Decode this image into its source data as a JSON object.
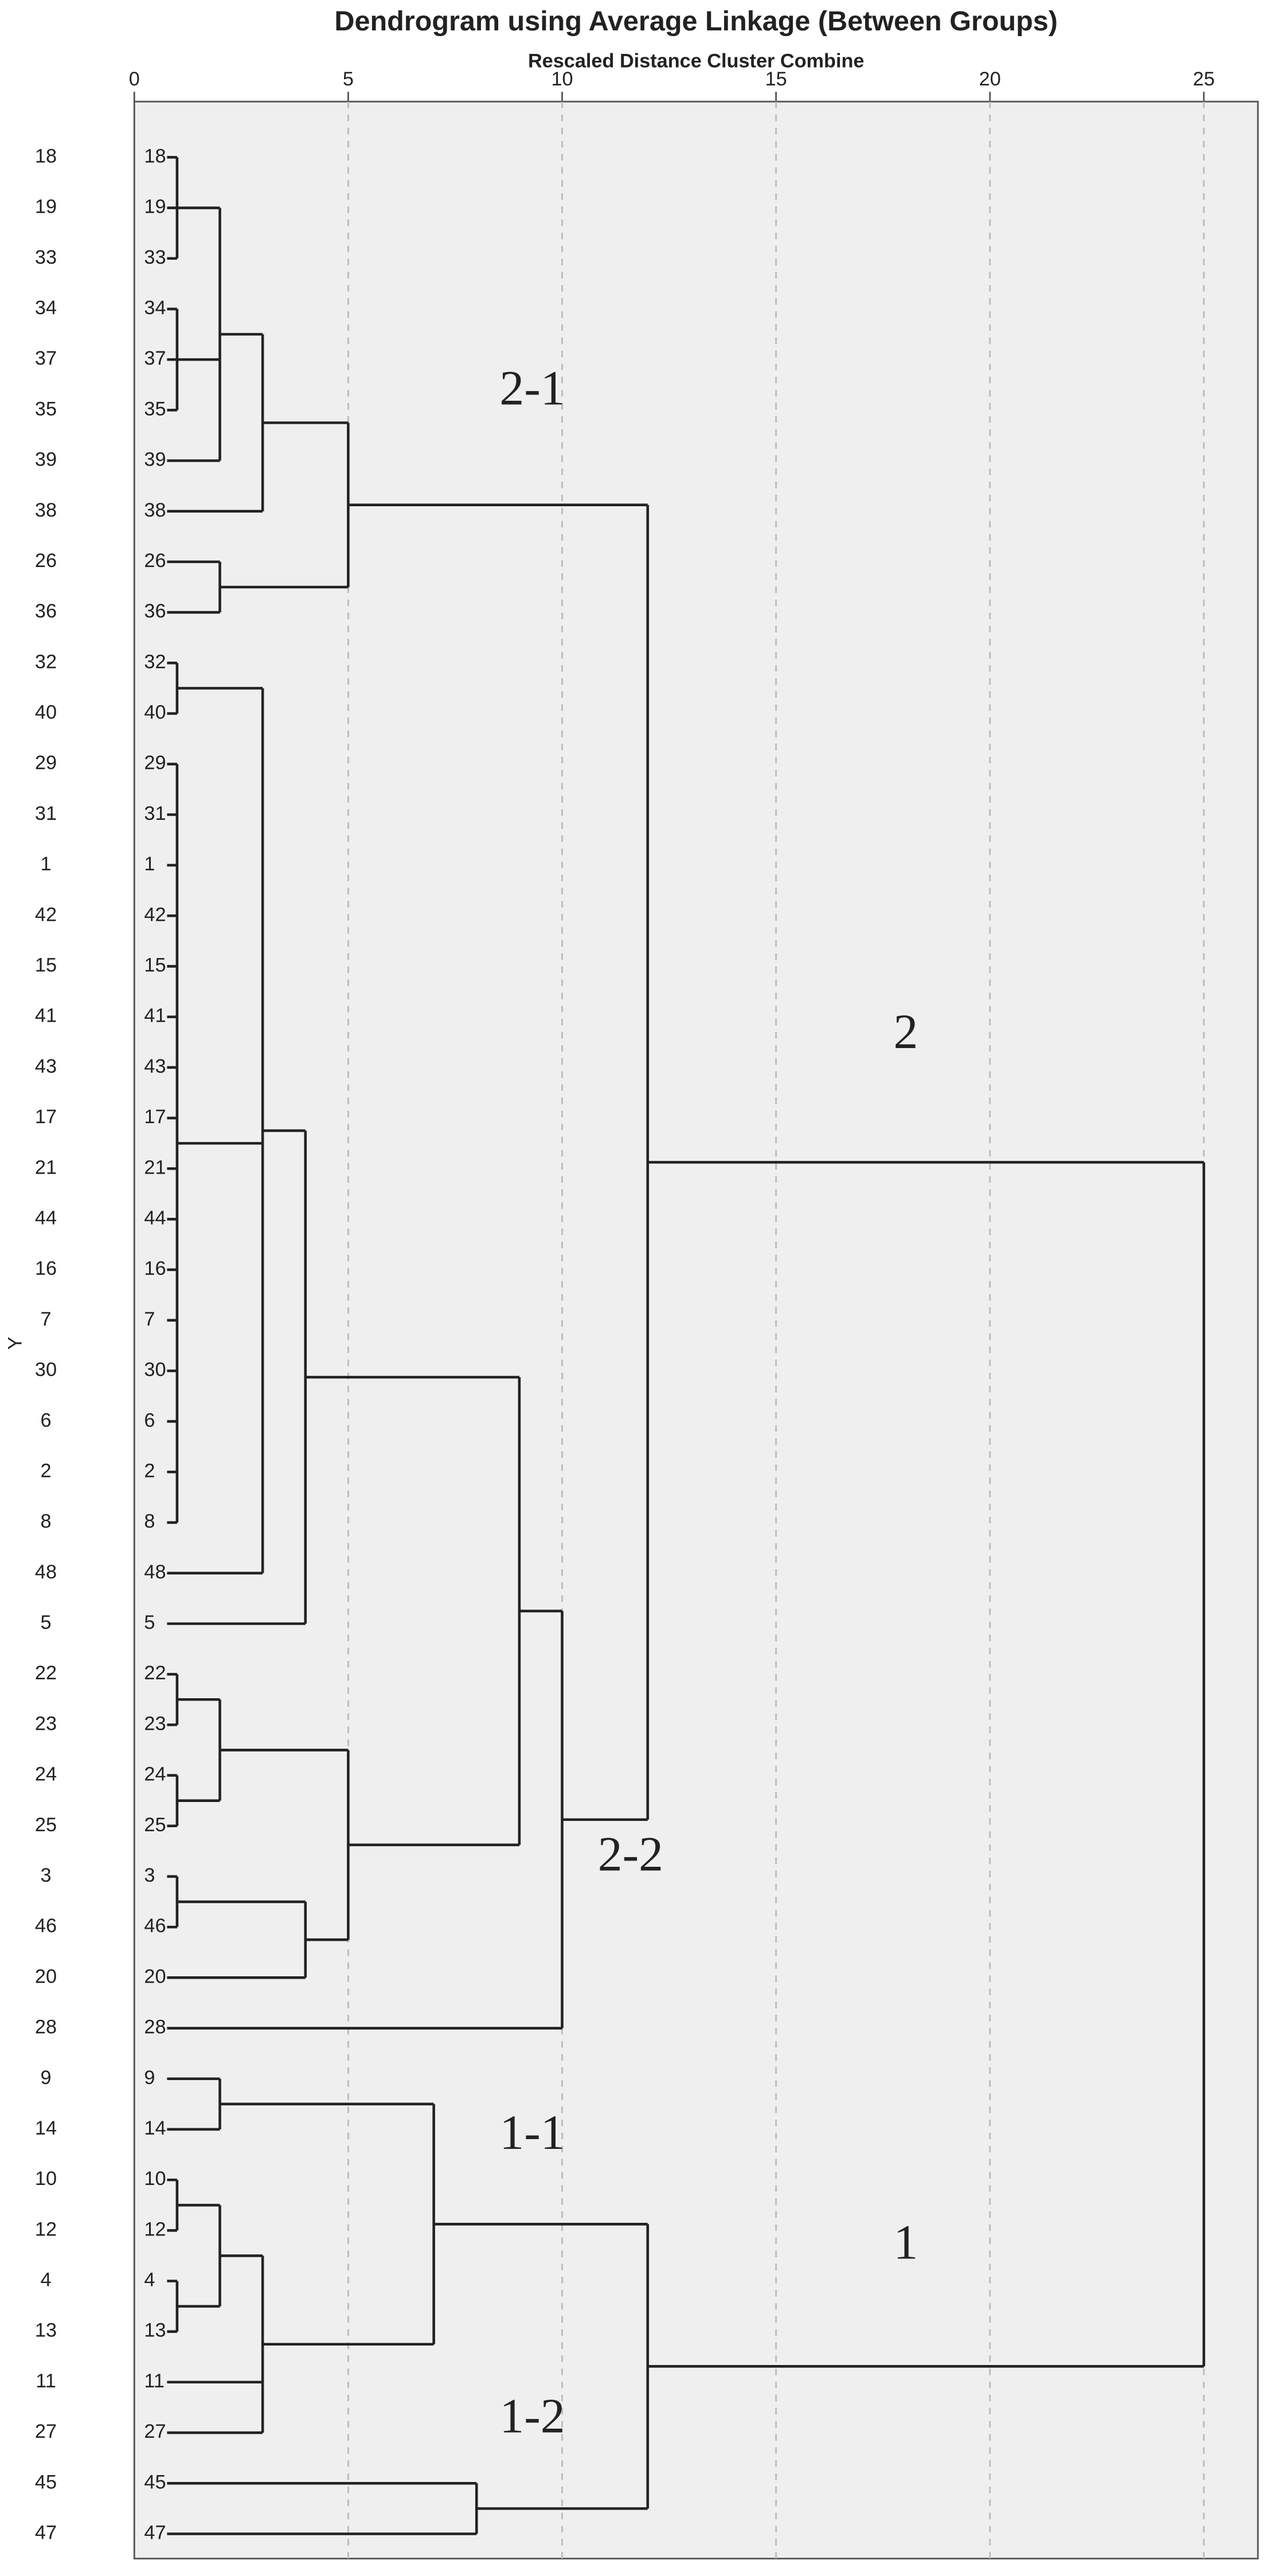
{
  "chart_data": {
    "type": "dendrogram",
    "title": "Dendrogram using Average Linkage (Between Groups)",
    "subtitle": "Rescaled Distance Cluster Combine",
    "y_label": "Y",
    "xlim": [
      0,
      25
    ],
    "xticks": [
      0,
      5,
      10,
      15,
      20,
      25
    ],
    "grid": true,
    "tree": {
      "height": 25,
      "children": [
        {
          "height": 12,
          "children": [
            {
              "height": 5,
              "children": [
                {
                  "height": 3,
                  "children": [
                    {
                      "height": 2,
                      "children": [
                        {
                          "height": 1,
                          "children": [
                            "18",
                            "19",
                            "33"
                          ]
                        },
                        {
                          "height": 1,
                          "children": [
                            "34",
                            "37",
                            "35"
                          ]
                        },
                        "39"
                      ]
                    },
                    "38"
                  ]
                },
                {
                  "height": 2,
                  "children": [
                    "26",
                    "36"
                  ]
                }
              ]
            },
            {
              "height": 10,
              "children": [
                {
                  "height": 9,
                  "children": [
                    {
                      "height": 4,
                      "children": [
                        {
                          "height": 3,
                          "children": [
                            {
                              "height": 1,
                              "children": [
                                "32",
                                "40"
                              ]
                            },
                            {
                              "height": 1,
                              "children": [
                                "29",
                                "31",
                                "1",
                                "42",
                                "15",
                                "41",
                                "43",
                                "17",
                                "21",
                                "44",
                                "16",
                                "7",
                                "30",
                                "6",
                                "2",
                                "8"
                              ]
                            },
                            "48"
                          ]
                        },
                        "5"
                      ]
                    },
                    {
                      "height": 5,
                      "children": [
                        {
                          "height": 2,
                          "children": [
                            {
                              "height": 1,
                              "children": [
                                "22",
                                "23"
                              ]
                            },
                            {
                              "height": 1,
                              "children": [
                                "24",
                                "25"
                              ]
                            }
                          ]
                        },
                        {
                          "height": 4,
                          "children": [
                            {
                              "height": 1,
                              "children": [
                                "3",
                                "46"
                              ]
                            },
                            "20"
                          ]
                        }
                      ]
                    }
                  ]
                },
                "28"
              ]
            }
          ]
        },
        {
          "height": 12,
          "children": [
            {
              "height": 7,
              "children": [
                {
                  "height": 2,
                  "children": [
                    "9",
                    "14"
                  ]
                },
                {
                  "height": 3,
                  "children": [
                    {
                      "height": 2,
                      "children": [
                        {
                          "height": 1,
                          "children": [
                            "10",
                            "12"
                          ]
                        },
                        {
                          "height": 1,
                          "children": [
                            "4",
                            "13"
                          ]
                        }
                      ]
                    },
                    "11",
                    "27"
                  ]
                }
              ]
            },
            {
              "height": 8,
              "children": [
                "45",
                "47"
              ]
            }
          ]
        }
      ]
    },
    "annotations": [
      "2-1",
      "2",
      "2-2",
      "1-1",
      "1",
      "1-2"
    ]
  }
}
